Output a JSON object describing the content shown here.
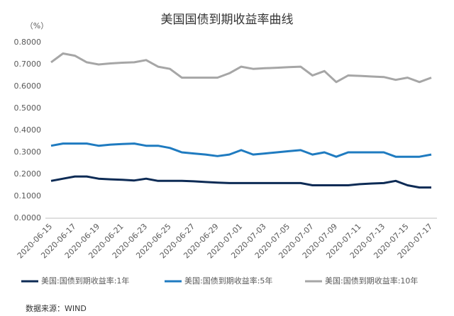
{
  "chart_data": {
    "type": "line",
    "title": "美国国债到期收益率曲线",
    "y_unit": "（%）",
    "source": "数据来源：WIND",
    "categories": [
      "2020-06-15",
      null,
      "2020-06-17",
      null,
      "2020-06-19",
      null,
      "2020-06-21",
      null,
      "2020-06-23",
      null,
      "2020-06-25",
      null,
      "2020-06-27",
      null,
      "2020-06-29",
      null,
      "2020-07-01",
      null,
      "2020-07-03",
      null,
      "2020-07-05",
      null,
      "2020-07-07",
      null,
      "2020-07-09",
      null,
      "2020-07-11",
      null,
      "2020-07-13",
      null,
      "2020-07-15",
      null,
      "2020-07-17"
    ],
    "series": [
      {
        "name": "美国:国债到期收益率:1年",
        "color": "#0d2b55",
        "values": [
          0.17,
          0.18,
          0.19,
          0.19,
          0.18,
          0.177,
          0.175,
          0.172,
          0.18,
          0.17,
          0.17,
          0.17,
          0.168,
          0.165,
          0.162,
          0.16,
          0.16,
          0.16,
          0.16,
          0.16,
          0.16,
          0.16,
          0.15,
          0.15,
          0.15,
          0.15,
          0.155,
          0.158,
          0.16,
          0.17,
          0.15,
          0.14,
          0.14
        ]
      },
      {
        "name": "美国:国债到期收益率:5年",
        "color": "#1f7bc0",
        "values": [
          0.33,
          0.34,
          0.34,
          0.34,
          0.33,
          0.335,
          0.338,
          0.34,
          0.33,
          0.33,
          0.32,
          0.3,
          0.295,
          0.29,
          0.283,
          0.29,
          0.31,
          0.29,
          0.295,
          0.3,
          0.305,
          0.31,
          0.29,
          0.3,
          0.28,
          0.3,
          0.3,
          0.3,
          0.3,
          0.28,
          0.28,
          0.28,
          0.29
        ]
      },
      {
        "name": "美国:国债到期收益率:10年",
        "color": "#a6a6a6",
        "values": [
          0.71,
          0.75,
          0.74,
          0.71,
          0.7,
          0.705,
          0.708,
          0.71,
          0.72,
          0.69,
          0.68,
          0.64,
          0.64,
          0.64,
          0.64,
          0.66,
          0.69,
          0.68,
          0.683,
          0.685,
          0.688,
          0.69,
          0.65,
          0.67,
          0.62,
          0.65,
          0.648,
          0.645,
          0.643,
          0.63,
          0.64,
          0.62,
          0.64
        ]
      }
    ],
    "ylim": [
      0,
      0.8
    ],
    "yticks": [
      {
        "value": 0,
        "label": "0.0000"
      },
      {
        "value": 0.1,
        "label": "0.1000"
      },
      {
        "value": 0.2,
        "label": "0.2000"
      },
      {
        "value": 0.3,
        "label": "0.3000"
      },
      {
        "value": 0.4,
        "label": "0.4000"
      },
      {
        "value": 0.5,
        "label": "0.5000"
      },
      {
        "value": 0.6,
        "label": "0.6000"
      },
      {
        "value": 0.7,
        "label": "0.7000"
      },
      {
        "value": 0.8,
        "label": "0.8000"
      }
    ],
    "grid": false
  }
}
